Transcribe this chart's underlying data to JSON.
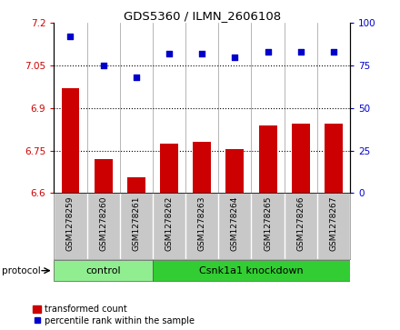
{
  "title": "GDS5360 / ILMN_2606108",
  "samples": [
    "GSM1278259",
    "GSM1278260",
    "GSM1278261",
    "GSM1278262",
    "GSM1278263",
    "GSM1278264",
    "GSM1278265",
    "GSM1278266",
    "GSM1278267"
  ],
  "bar_values": [
    6.97,
    6.72,
    6.655,
    6.775,
    6.78,
    6.755,
    6.84,
    6.845,
    6.845
  ],
  "scatter_values": [
    92,
    75,
    68,
    82,
    82,
    80,
    83,
    83,
    83
  ],
  "bar_bottom": 6.6,
  "ylim_left": [
    6.6,
    7.2
  ],
  "ylim_right": [
    0,
    100
  ],
  "yticks_left": [
    6.6,
    6.75,
    6.9,
    7.05,
    7.2
  ],
  "yticks_right": [
    0,
    25,
    50,
    75,
    100
  ],
  "ytick_labels_left": [
    "6.6",
    "6.75",
    "6.9",
    "7.05",
    "7.2"
  ],
  "ytick_labels_right": [
    "0",
    "25",
    "50",
    "75",
    "100"
  ],
  "hlines": [
    6.75,
    6.9,
    7.05
  ],
  "bar_color": "#cc0000",
  "scatter_color": "#0000cc",
  "control_label": "control",
  "knockdown_label": "Csnk1a1 knockdown",
  "control_indices": [
    0,
    1,
    2
  ],
  "knockdown_indices": [
    3,
    4,
    5,
    6,
    7,
    8
  ],
  "protocol_label": "protocol",
  "legend_bar_label": "transformed count",
  "legend_scatter_label": "percentile rank within the sample",
  "control_bg": "#90ee90",
  "knockdown_bg": "#32cd32",
  "sample_bg": "#c8c8c8",
  "plot_bg": "#ffffff"
}
